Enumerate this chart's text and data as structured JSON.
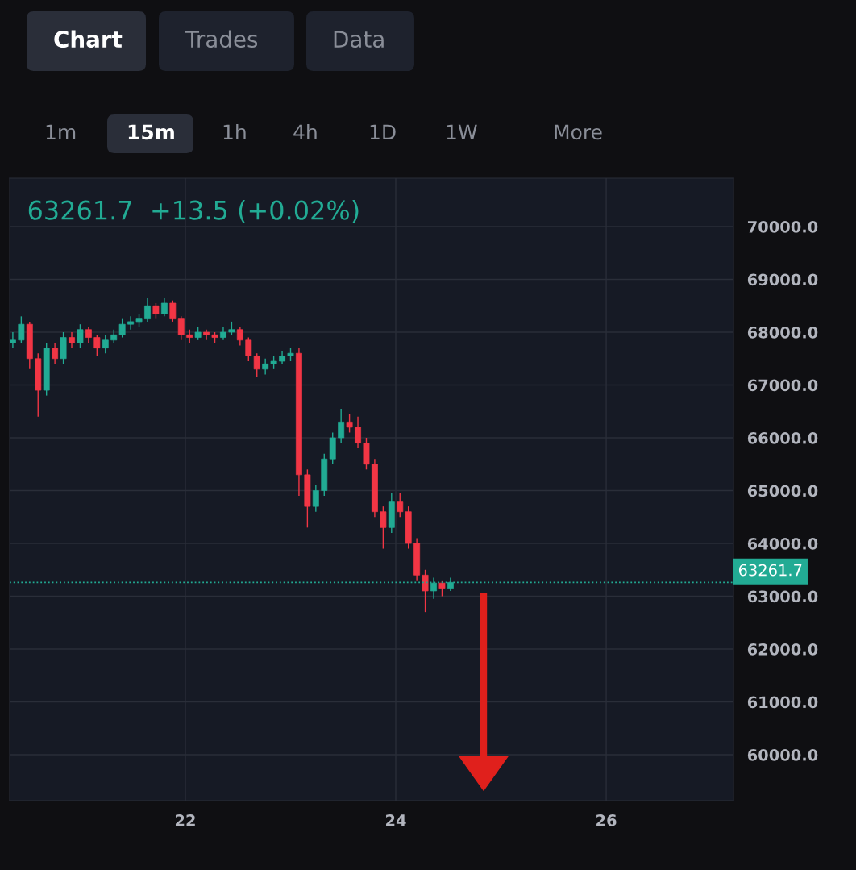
{
  "chart_data": {
    "type": "candlestick",
    "title": "63261.7  +13.5 (+0.02%)",
    "annotations": [
      "Chart",
      "Trades",
      "Data",
      "1m",
      "15m",
      "1h",
      "4h",
      "1D",
      "1W",
      "More"
    ],
    "x": [
      20.36,
      20.44,
      20.52,
      20.6,
      20.68,
      20.76,
      20.84,
      20.92,
      21.0,
      21.08,
      21.16,
      21.24,
      21.32,
      21.4,
      21.48,
      21.56,
      21.64,
      21.72,
      21.8,
      21.88,
      21.96,
      22.04,
      22.12,
      22.2,
      22.28,
      22.36,
      22.44,
      22.52,
      22.6,
      22.68,
      22.76,
      22.84,
      22.92,
      23.0,
      23.08,
      23.16,
      23.24,
      23.32,
      23.4,
      23.48,
      23.56,
      23.64,
      23.72,
      23.8,
      23.88,
      23.96,
      24.04,
      24.12,
      24.2,
      24.28,
      24.36,
      24.44,
      24.52
    ],
    "ohlc": [
      [
        67800,
        68000,
        67700,
        67850
      ],
      [
        67850,
        68300,
        67800,
        68150
      ],
      [
        68150,
        68200,
        67300,
        67500
      ],
      [
        67500,
        67600,
        66400,
        66900
      ],
      [
        66900,
        67800,
        66800,
        67700
      ],
      [
        67700,
        67800,
        67400,
        67500
      ],
      [
        67500,
        68000,
        67400,
        67900
      ],
      [
        67900,
        68000,
        67700,
        67800
      ],
      [
        67800,
        68150,
        67700,
        68050
      ],
      [
        68050,
        68100,
        67800,
        67900
      ],
      [
        67900,
        67950,
        67550,
        67700
      ],
      [
        67700,
        67950,
        67600,
        67850
      ],
      [
        67850,
        68050,
        67800,
        67950
      ],
      [
        67950,
        68250,
        67900,
        68150
      ],
      [
        68150,
        68300,
        68050,
        68200
      ],
      [
        68200,
        68350,
        68100,
        68250
      ],
      [
        68250,
        68650,
        68200,
        68500
      ],
      [
        68500,
        68550,
        68250,
        68350
      ],
      [
        68350,
        68650,
        68300,
        68550
      ],
      [
        68550,
        68600,
        68200,
        68250
      ],
      [
        68250,
        68300,
        67850,
        67950
      ],
      [
        67950,
        68050,
        67800,
        67900
      ],
      [
        67900,
        68100,
        67850,
        68000
      ],
      [
        68000,
        68050,
        67850,
        67950
      ],
      [
        67950,
        68000,
        67800,
        67900
      ],
      [
        67900,
        68100,
        67850,
        68000
      ],
      [
        68000,
        68200,
        67950,
        68050
      ],
      [
        68050,
        68100,
        67750,
        67850
      ],
      [
        67850,
        67900,
        67450,
        67550
      ],
      [
        67550,
        67600,
        67150,
        67300
      ],
      [
        67300,
        67500,
        67200,
        67400
      ],
      [
        67400,
        67550,
        67300,
        67450
      ],
      [
        67450,
        67650,
        67400,
        67550
      ],
      [
        67550,
        67700,
        67450,
        67600
      ],
      [
        67600,
        67700,
        64900,
        65300
      ],
      [
        65300,
        65400,
        64300,
        64700
      ],
      [
        64700,
        65100,
        64600,
        65000
      ],
      [
        65000,
        65700,
        64900,
        65600
      ],
      [
        65600,
        66100,
        65500,
        66000
      ],
      [
        66000,
        66550,
        65900,
        66300
      ],
      [
        66300,
        66450,
        66100,
        66200
      ],
      [
        66200,
        66400,
        65800,
        65900
      ],
      [
        65900,
        66000,
        65400,
        65500
      ],
      [
        65500,
        65600,
        64500,
        64600
      ],
      [
        64600,
        64700,
        63900,
        64300
      ],
      [
        64300,
        64950,
        64200,
        64800
      ],
      [
        64800,
        64950,
        64500,
        64600
      ],
      [
        64600,
        64700,
        63900,
        64000
      ],
      [
        64000,
        64100,
        63300,
        63400
      ],
      [
        63400,
        63500,
        62700,
        63100
      ],
      [
        63100,
        63350,
        62950,
        63250
      ],
      [
        63250,
        63300,
        63000,
        63150
      ],
      [
        63150,
        63350,
        63100,
        63261.7
      ]
    ],
    "xlim": [
      20.33,
      27.21
    ],
    "xticks": [
      22,
      24,
      26
    ],
    "ylim": [
      59130,
      70916
    ],
    "yticks": [
      {
        "value": 60000,
        "label": "60000.0"
      },
      {
        "value": 61000,
        "label": "61000.0"
      },
      {
        "value": 62000,
        "label": "62000.0"
      },
      {
        "value": 63000,
        "label": "63000.0"
      },
      {
        "value": 64000,
        "label": "64000.0"
      },
      {
        "value": 65000,
        "label": "65000.0"
      },
      {
        "value": 66000,
        "label": "66000.0"
      },
      {
        "value": 67000,
        "label": "67000.0"
      },
      {
        "value": 68000,
        "label": "68000.0"
      },
      {
        "value": 69000,
        "label": "69000.0"
      },
      {
        "value": 70000,
        "label": "70000.0"
      }
    ],
    "ref_lines": [
      {
        "axis": "y",
        "value": 63261.7,
        "label": "63261.7",
        "color": "#22ab94",
        "line_style": "dotted"
      }
    ],
    "grid": true
  }
}
